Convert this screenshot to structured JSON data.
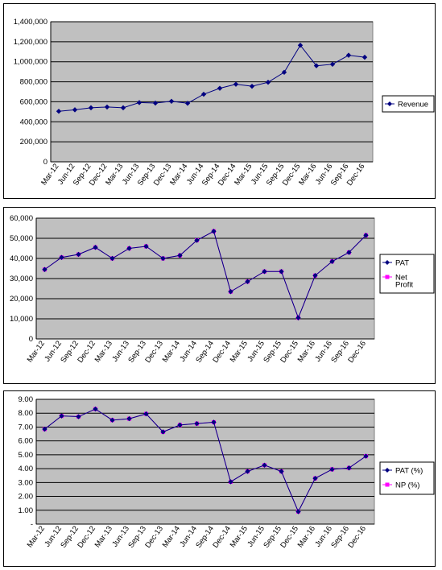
{
  "chart_data": [
    {
      "type": "line",
      "categories": [
        "Mar-12",
        "Jun-12",
        "Sep-12",
        "Dec-12",
        "Mar-13",
        "Jun-13",
        "Sep-13",
        "Dec-13",
        "Mar-14",
        "Jun-14",
        "Sep-14",
        "Dec-14",
        "Mar-15",
        "Jun-15",
        "Sep-15",
        "Dec-15",
        "Mar-16",
        "Jun-16",
        "Sep-16",
        "Dec-16"
      ],
      "y_ticks": [
        "0",
        "200,000",
        "400,000",
        "600,000",
        "800,000",
        "1,000,000",
        "1,200,000",
        "1,400,000"
      ],
      "ylim": [
        0,
        1400000
      ],
      "grid": true,
      "legend_position": "right",
      "plot_background": "#c0c0c0",
      "series": [
        {
          "name": "Revenue",
          "color": "#000080",
          "marker": "diamond",
          "values": [
            505000,
            520000,
            540000,
            548000,
            540000,
            592000,
            587000,
            605000,
            585000,
            675000,
            735000,
            775000,
            755000,
            795000,
            895000,
            1165000,
            960000,
            975000,
            1065000,
            1045000
          ]
        }
      ]
    },
    {
      "type": "line",
      "categories": [
        "Mar-12",
        "Jun-12",
        "Sep-12",
        "Dec-12",
        "Mar-13",
        "Jun-13",
        "Sep-13",
        "Dec-13",
        "Mar-14",
        "Jun-14",
        "Sep-14",
        "Dec-14",
        "Mar-15",
        "Jun-15",
        "Sep-15",
        "Dec-15",
        "Mar-16",
        "Jun-16",
        "Sep-16",
        "Dec-16"
      ],
      "y_ticks": [
        "0",
        "10,000",
        "20,000",
        "30,000",
        "40,000",
        "50,000",
        "60,000"
      ],
      "ylim": [
        0,
        60000
      ],
      "grid": true,
      "legend_position": "right",
      "plot_background": "#c0c0c0",
      "series": [
        {
          "name": "PAT",
          "color": "#000080",
          "marker": "diamond",
          "values": [
            34500,
            40500,
            42000,
            45500,
            40000,
            45000,
            46000,
            40000,
            41500,
            49000,
            53500,
            23500,
            28500,
            33500,
            33500,
            10500,
            31500,
            38500,
            43000,
            51500
          ]
        },
        {
          "name": "Net\nProfit",
          "color": "#ff00ff",
          "marker": "square",
          "values": [
            34500,
            40500,
            42000,
            45500,
            40000,
            45000,
            46000,
            40000,
            41500,
            49000,
            53500,
            23500,
            28500,
            33500,
            33500,
            10500,
            31500,
            38500,
            43000,
            51500
          ]
        }
      ]
    },
    {
      "type": "line",
      "categories": [
        "Mar-12",
        "Jun-12",
        "Sep-12",
        "Dec-12",
        "Mar-13",
        "Jun-13",
        "Sep-13",
        "Dec-13",
        "Mar-14",
        "Jun-14",
        "Sep-14",
        "Dec-14",
        "Mar-15",
        "Jun-15",
        "Sep-15",
        "Dec-15",
        "Mar-16",
        "Jun-16",
        "Sep-16",
        "Dec-16"
      ],
      "y_ticks": [
        "-",
        "1.00",
        "2.00",
        "3.00",
        "4.00",
        "5.00",
        "6.00",
        "7.00",
        "8.00",
        "9.00"
      ],
      "ylim": [
        0,
        9
      ],
      "grid": true,
      "legend_position": "right",
      "plot_background": "#c0c0c0",
      "series": [
        {
          "name": "PAT (%)",
          "color": "#000080",
          "marker": "diamond",
          "values": [
            6.85,
            7.8,
            7.75,
            8.3,
            7.5,
            7.6,
            7.95,
            6.65,
            7.15,
            7.25,
            7.35,
            3.05,
            3.8,
            4.25,
            3.8,
            0.9,
            3.3,
            3.95,
            4.05,
            4.9
          ]
        },
        {
          "name": "NP (%)",
          "color": "#ff00ff",
          "marker": "square",
          "values": [
            6.85,
            7.8,
            7.75,
            8.3,
            7.5,
            7.6,
            7.95,
            6.65,
            7.15,
            7.25,
            7.35,
            3.05,
            3.8,
            4.25,
            3.8,
            0.9,
            3.3,
            3.95,
            4.05,
            4.9
          ]
        }
      ]
    }
  ]
}
